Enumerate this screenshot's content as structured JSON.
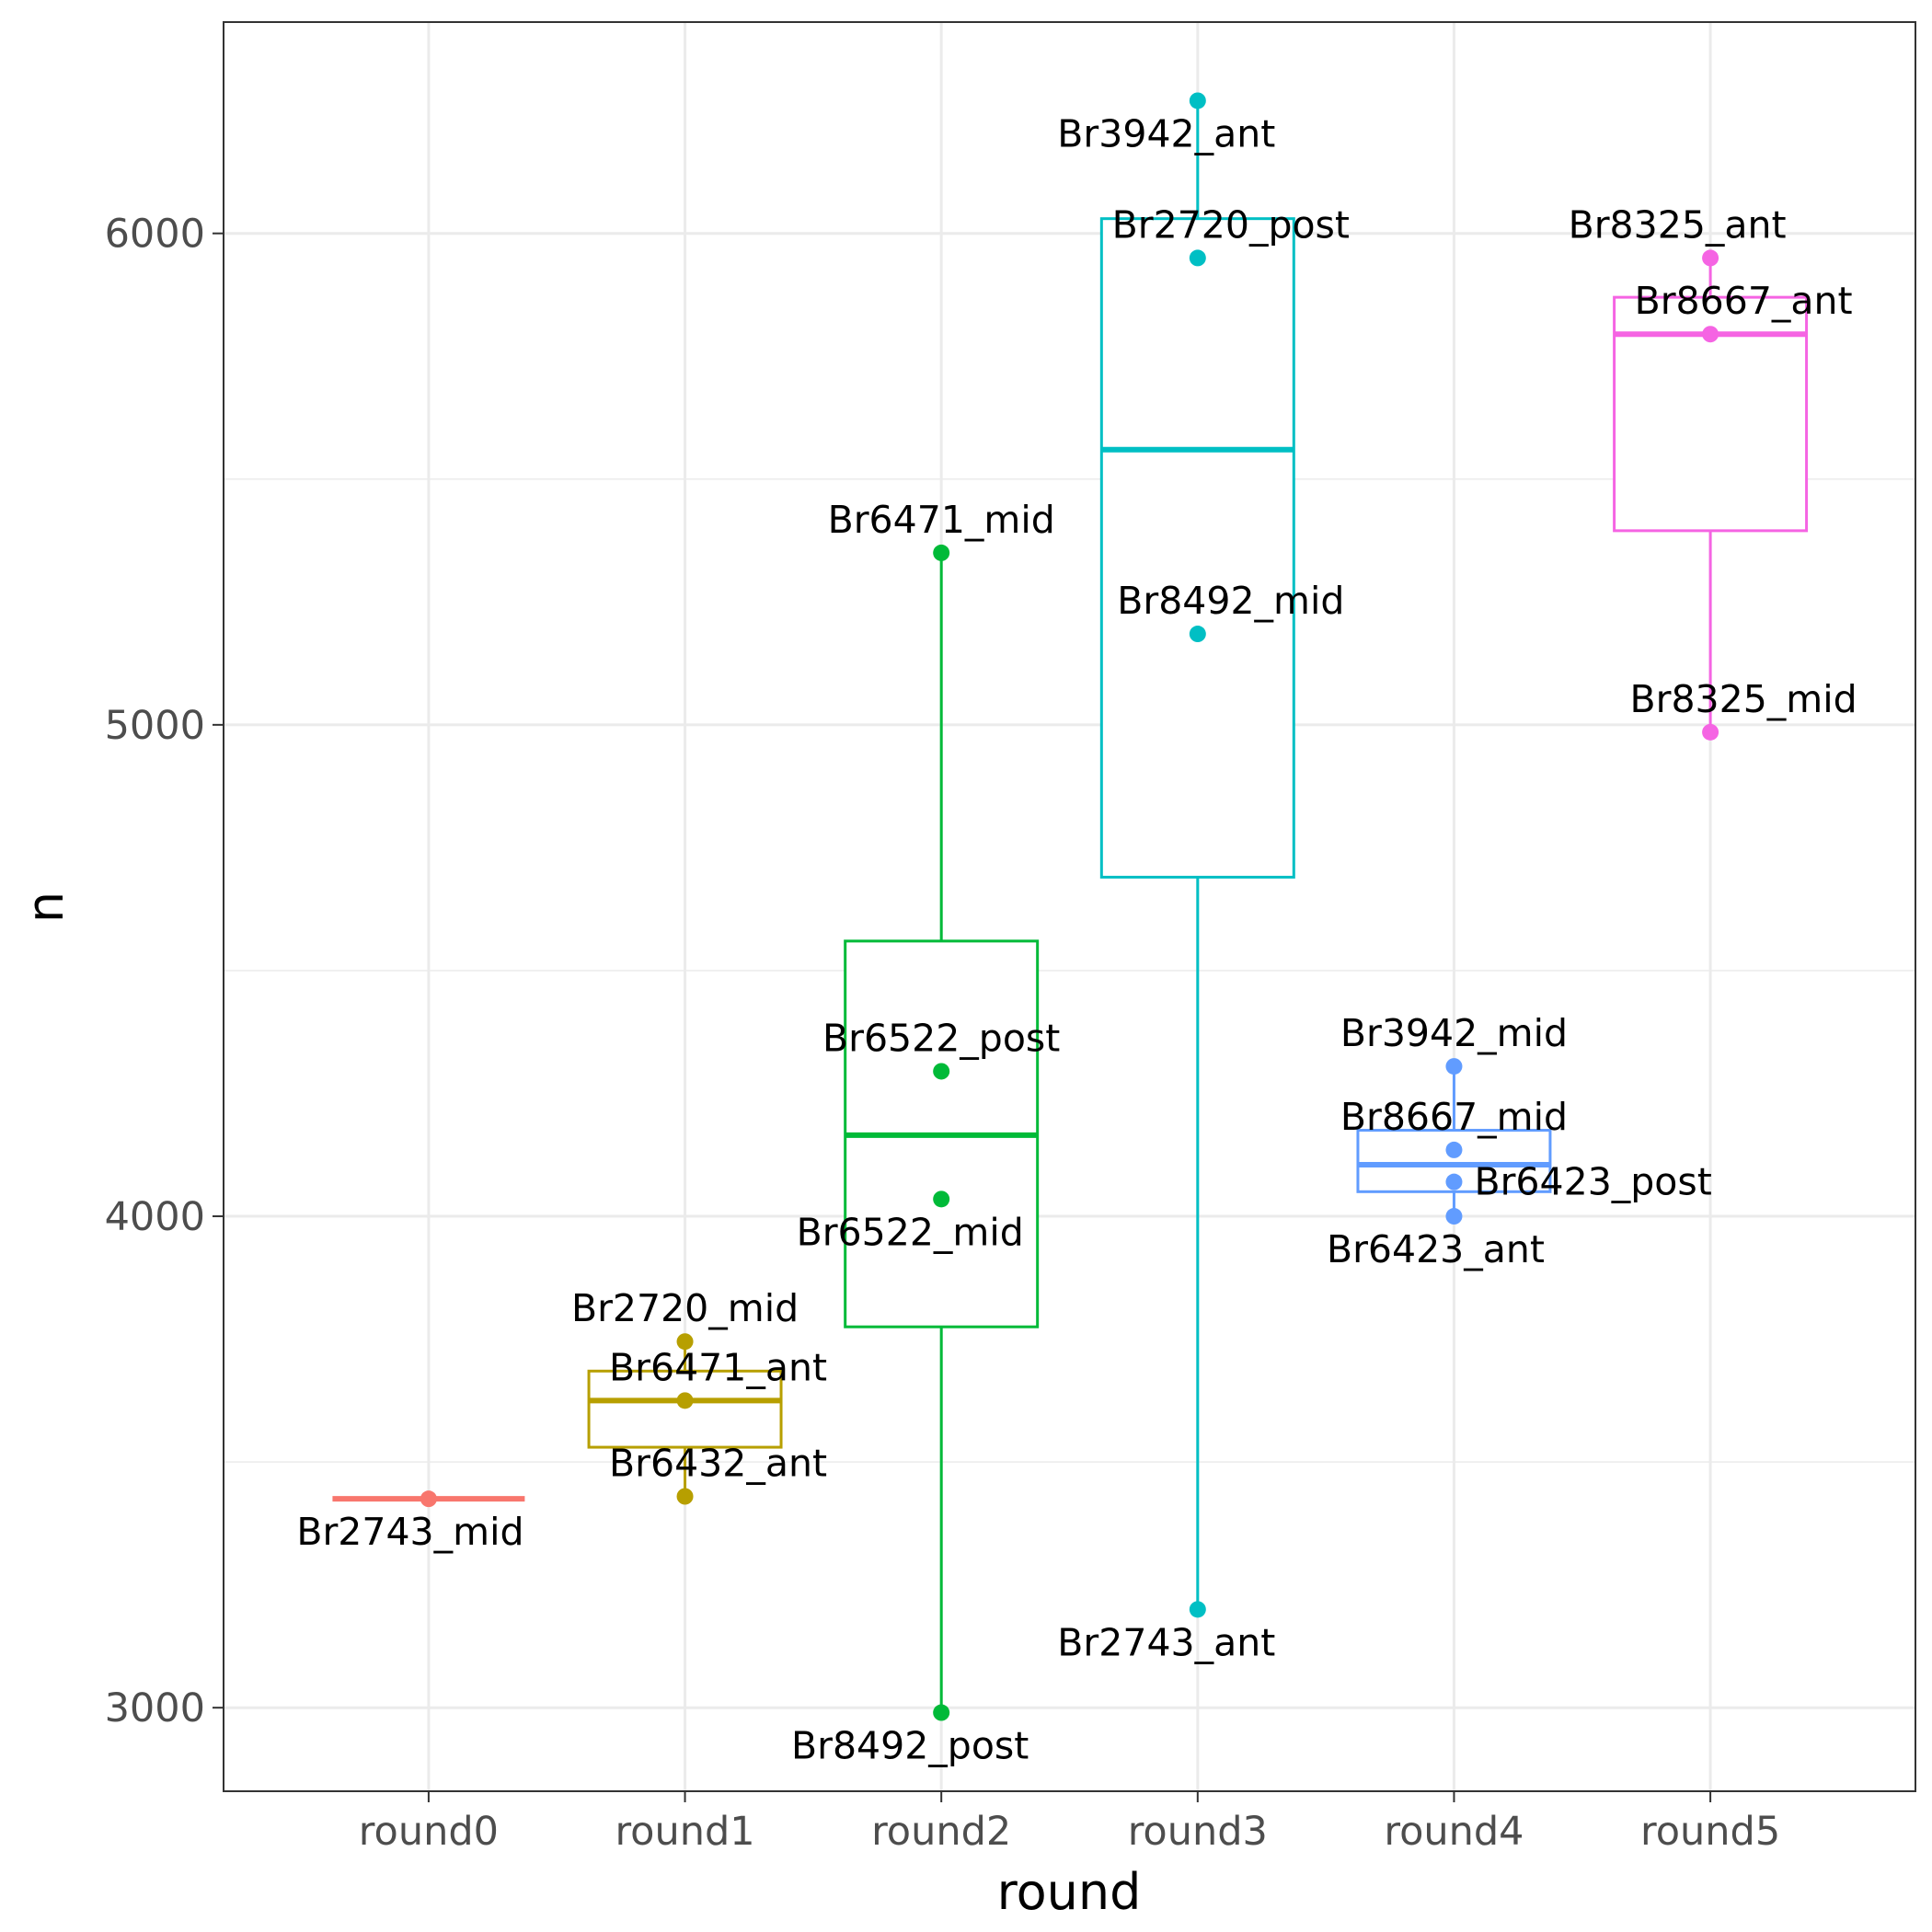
{
  "chart_data": {
    "type": "box",
    "xlabel": "round",
    "ylabel": "n",
    "ylim": [
      2830,
      6430
    ],
    "y_ticks": [
      3000,
      4000,
      5000,
      6000
    ],
    "y_tick_labels": [
      "3000",
      "4000",
      "5000",
      "6000"
    ],
    "y_minor_ticks": [
      3500,
      4500,
      5500
    ],
    "grid": true,
    "legend": "none",
    "categories": [
      "round0",
      "round1",
      "round2",
      "round3",
      "round4",
      "round5"
    ],
    "boxes": [
      {
        "category": "round0",
        "color": "#F8766D",
        "whisker_low": 3425,
        "q1": 3425,
        "median": 3425,
        "q3": 3425,
        "whisker_high": 3425
      },
      {
        "category": "round1",
        "color": "#B79F00",
        "whisker_low": 3430,
        "q1": 3530,
        "median": 3625,
        "q3": 3685,
        "whisker_high": 3745
      },
      {
        "category": "round2",
        "color": "#00BA38",
        "whisker_low": 2990,
        "q1": 3775,
        "median": 4165,
        "q3": 4560,
        "whisker_high": 5350
      },
      {
        "category": "round3",
        "color": "#00BFC4",
        "whisker_low": 3200,
        "q1": 4690,
        "median": 5560,
        "q3": 6030,
        "whisker_high": 6270
      },
      {
        "category": "round4",
        "color": "#619CFF",
        "whisker_low": 4000,
        "q1": 4050,
        "median": 4105,
        "q3": 4175,
        "whisker_high": 4305
      },
      {
        "category": "round5",
        "color": "#F564E3",
        "whisker_low": 4985,
        "q1": 5395,
        "median": 5795,
        "q3": 5870,
        "whisker_high": 5950
      }
    ],
    "points": [
      {
        "category": "round0",
        "value": 3425,
        "label": "Br2743_mid",
        "label_pos": "below"
      },
      {
        "category": "round1",
        "value": 3745,
        "label": "Br2720_mid",
        "label_pos": "above"
      },
      {
        "category": "round1",
        "value": 3625,
        "label": "Br6471_ant",
        "label_pos": "above-right"
      },
      {
        "category": "round1",
        "value": 3430,
        "label": "Br6432_ant",
        "label_pos": "above-right"
      },
      {
        "category": "round2",
        "value": 5350,
        "label": "Br6471_mid",
        "label_pos": "above"
      },
      {
        "category": "round2",
        "value": 4295,
        "label": "Br6522_post",
        "label_pos": "above"
      },
      {
        "category": "round2",
        "value": 4035,
        "label": "Br6522_mid",
        "label_pos": "below-left"
      },
      {
        "category": "round2",
        "value": 2990,
        "label": "Br8492_post",
        "label_pos": "below-left"
      },
      {
        "category": "round3",
        "value": 6270,
        "label": "Br3942_ant",
        "label_pos": "below-left"
      },
      {
        "category": "round3",
        "value": 5950,
        "label": "Br2720_post",
        "label_pos": "above-right"
      },
      {
        "category": "round3",
        "value": 5185,
        "label": "Br8492_mid",
        "label_pos": "above-right"
      },
      {
        "category": "round3",
        "value": 3200,
        "label": "Br2743_ant",
        "label_pos": "below-left"
      },
      {
        "category": "round4",
        "value": 4305,
        "label": "Br3942_mid",
        "label_pos": "above"
      },
      {
        "category": "round4",
        "value": 4135,
        "label": "Br8667_mid",
        "label_pos": "above"
      },
      {
        "category": "round4",
        "value": 4070,
        "label": "Br6423_post",
        "label_pos": "right"
      },
      {
        "category": "round4",
        "value": 4000,
        "label": "Br6423_ant",
        "label_pos": "below"
      },
      {
        "category": "round5",
        "value": 5950,
        "label": "Br8325_ant",
        "label_pos": "above-left"
      },
      {
        "category": "round5",
        "value": 5795,
        "label": "Br8667_ant",
        "label_pos": "above-right"
      },
      {
        "category": "round5",
        "value": 4985,
        "label": "Br8325_mid",
        "label_pos": "above-right"
      }
    ]
  }
}
